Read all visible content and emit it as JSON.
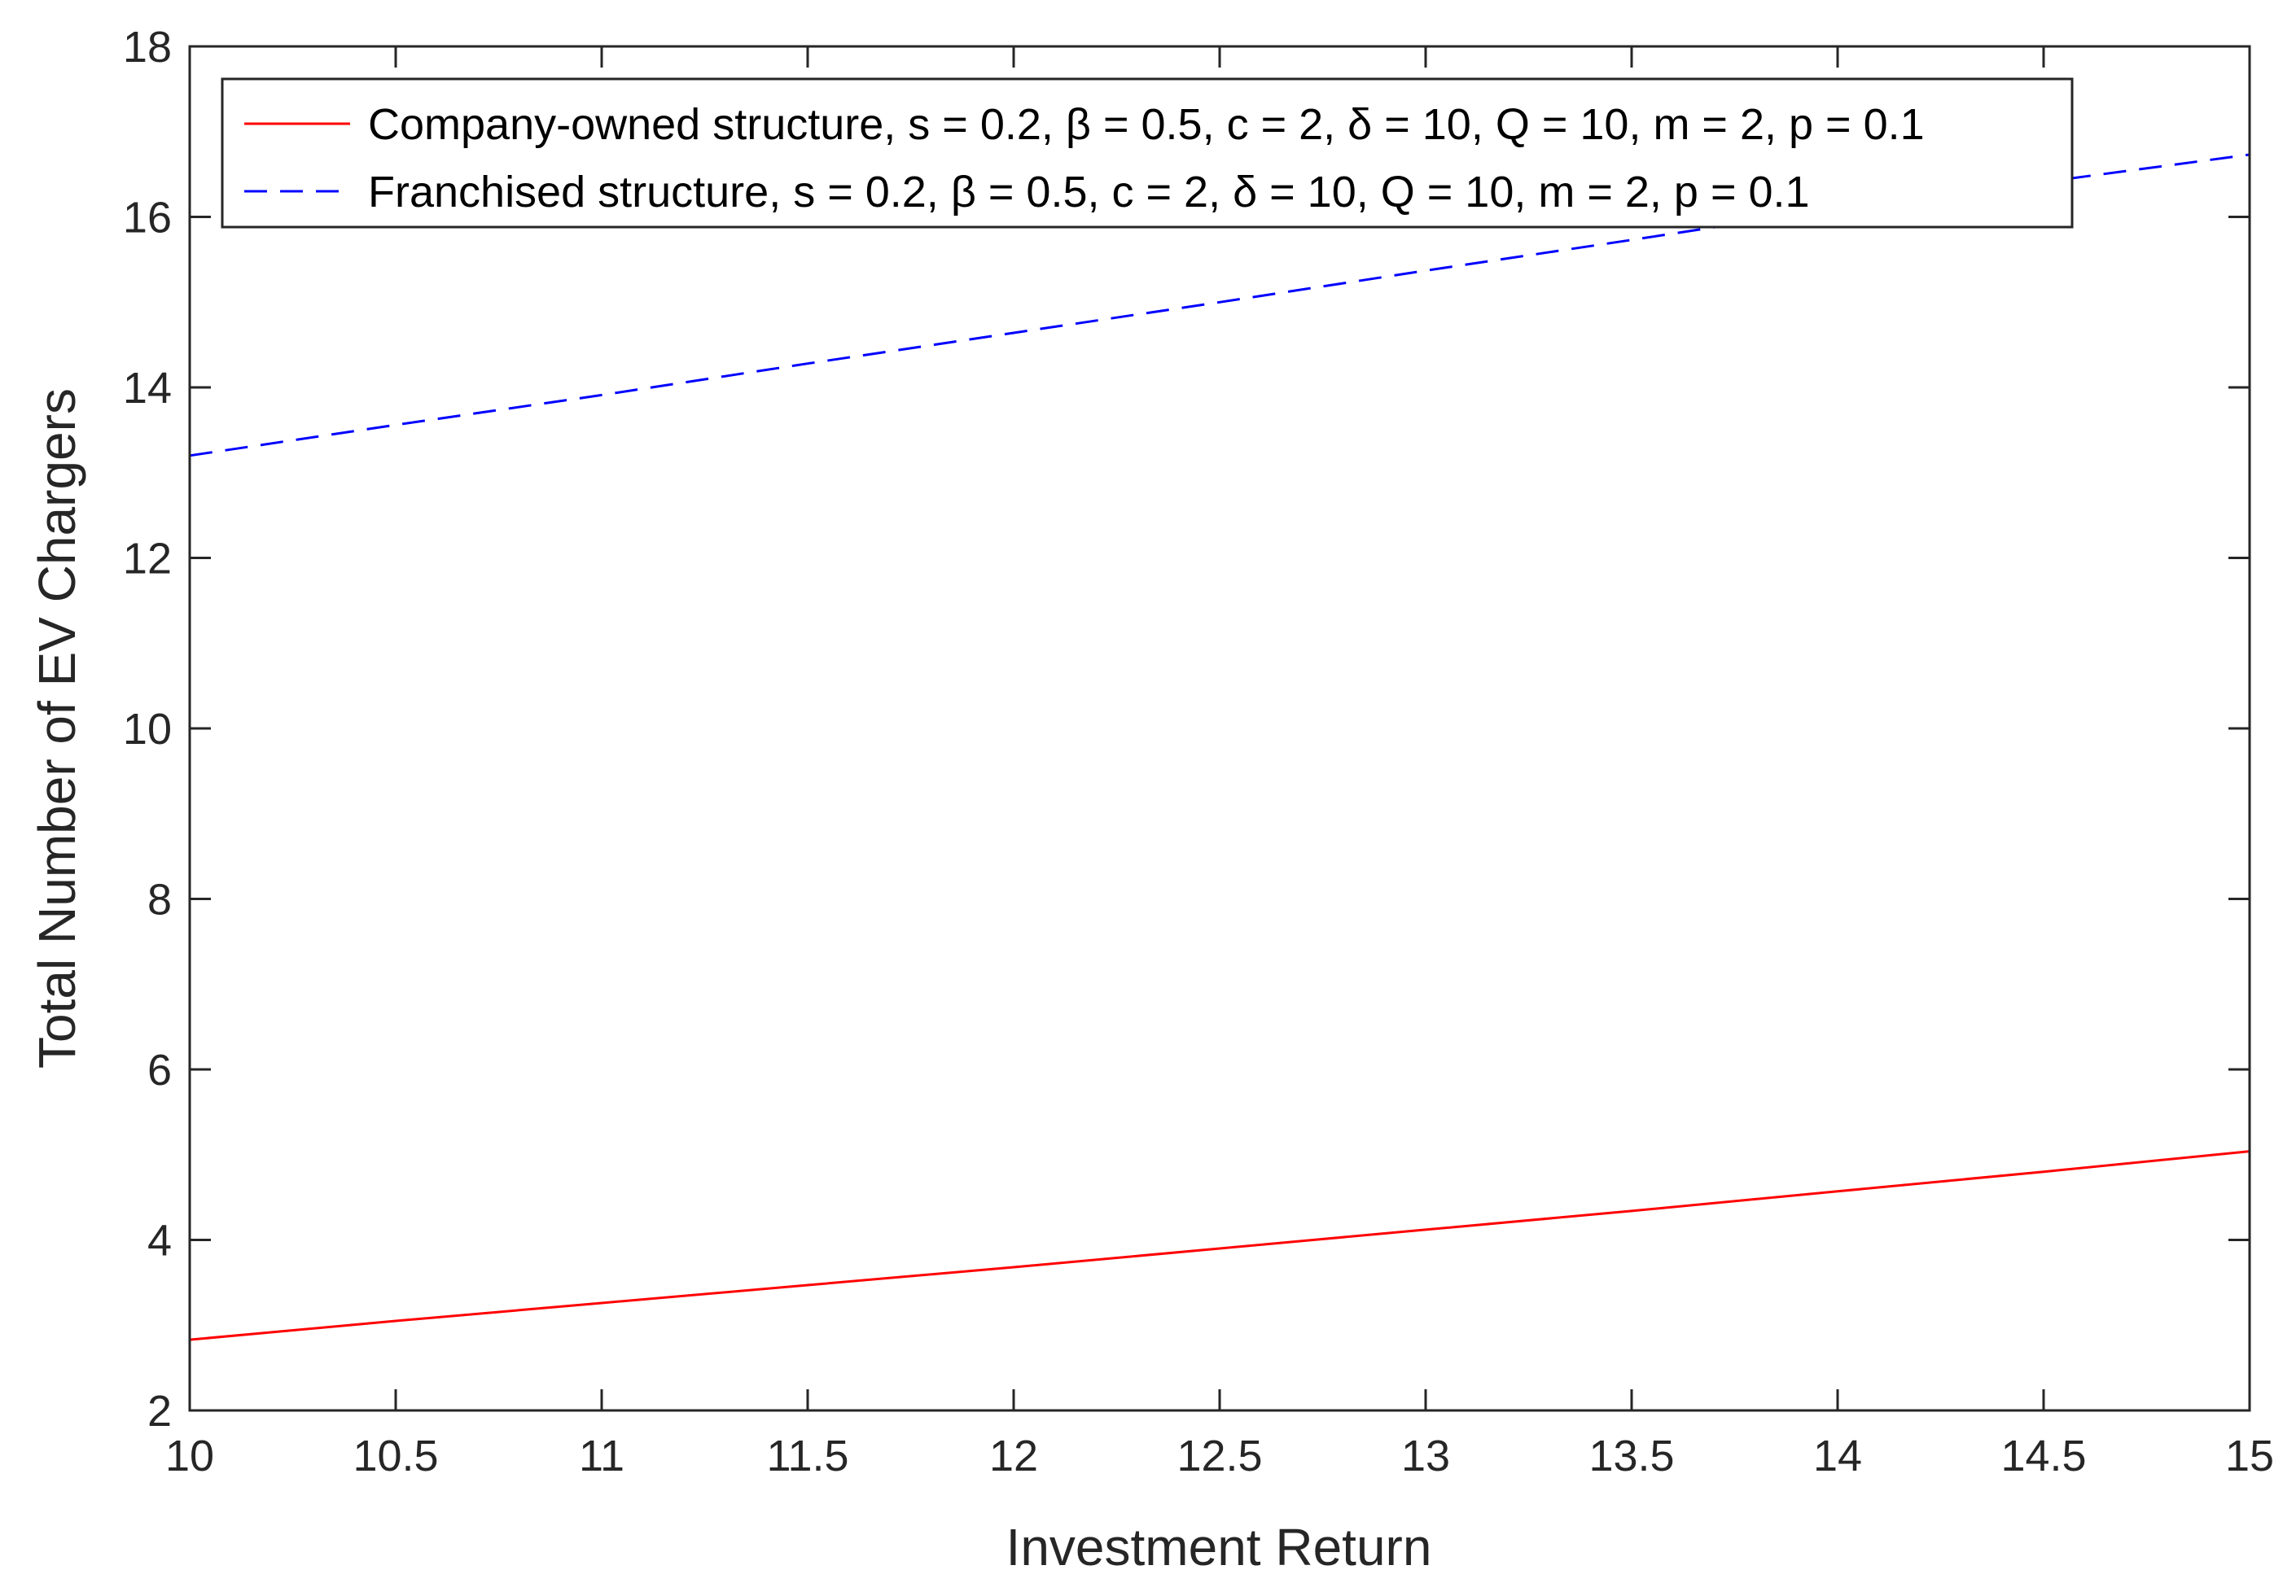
{
  "chart_data": {
    "type": "line",
    "title": "",
    "xlabel": "Investment Return",
    "ylabel": "Total Number of EV Chargers",
    "xlim": [
      10,
      15
    ],
    "ylim": [
      2,
      18
    ],
    "xticks": [
      10,
      10.5,
      11,
      11.5,
      12,
      12.5,
      13,
      13.5,
      14,
      14.5,
      15
    ],
    "yticks": [
      2,
      4,
      6,
      8,
      10,
      12,
      14,
      16,
      18
    ],
    "xtick_labels": [
      "10",
      "10.5",
      "11",
      "11.5",
      "12",
      "12.5",
      "13",
      "13.5",
      "14",
      "14.5",
      "15"
    ],
    "ytick_labels": [
      "2",
      "4",
      "6",
      "8",
      "10",
      "12",
      "14",
      "16",
      "18"
    ],
    "grid": false,
    "legend_position": "top-left",
    "series": [
      {
        "name": "Company-owned structure, s = 0.2, β = 0.5, c = 2, δ = 10, Q = 10, m = 2, p = 0.1",
        "color": "#ff0000",
        "style": "solid",
        "x": [
          10,
          10.5,
          11,
          11.5,
          12,
          12.5,
          13,
          13.5,
          14,
          14.5,
          15
        ],
        "values": [
          2.83,
          3.05,
          3.26,
          3.47,
          3.68,
          3.9,
          4.12,
          4.34,
          4.57,
          4.8,
          5.04
        ]
      },
      {
        "name": "Franchised structure, s = 0.2, β = 0.5, c = 2, δ = 10, Q = 10, m = 2, p = 0.1",
        "color": "#0000ff",
        "style": "dashed",
        "x": [
          10,
          10.5,
          11,
          11.5,
          12,
          12.5,
          13,
          13.5,
          14,
          14.5,
          15
        ],
        "values": [
          13.2,
          13.56,
          13.91,
          14.28,
          14.64,
          15.0,
          15.37,
          15.73,
          16.1,
          16.41,
          16.73
        ]
      }
    ]
  }
}
